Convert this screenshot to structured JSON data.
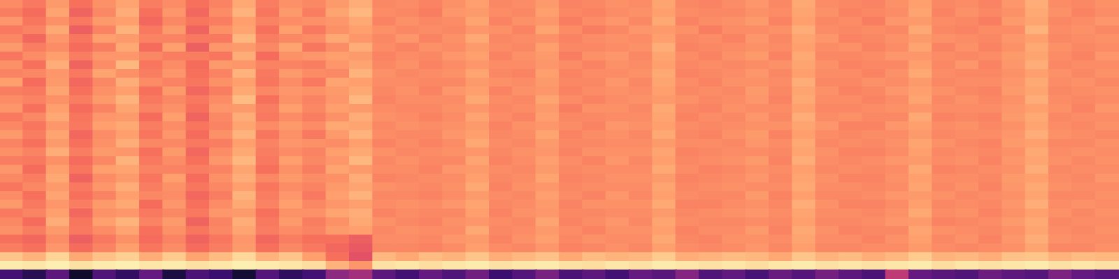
{
  "chart_data": {
    "type": "heatmap",
    "tick_labels": false,
    "zlim": [
      0,
      100
    ],
    "cells": [
      [
        76,
        72,
        79,
        70,
        77,
        81,
        73,
        76,
        70,
        74,
        82,
        73,
        77,
        75,
        79,
        83,
        75,
        76,
        74,
        77,
        80,
        75,
        76,
        79,
        74,
        75,
        77,
        76,
        81,
        75,
        74,
        76,
        78,
        75,
        82,
        76,
        75,
        74,
        77,
        80,
        75,
        76,
        74,
        78,
        83,
        76,
        75,
        77
      ],
      [
        73,
        69,
        81,
        67,
        75,
        83,
        70,
        78,
        68,
        76,
        84,
        71,
        79,
        73,
        81,
        85,
        76,
        75,
        73,
        78,
        79,
        76,
        75,
        80,
        75,
        74,
        76,
        77,
        80,
        76,
        75,
        75,
        77,
        76,
        81,
        77,
        74,
        75,
        76,
        81,
        74,
        77,
        75,
        77,
        82,
        77,
        74,
        76
      ],
      [
        78,
        71,
        77,
        72,
        79,
        80,
        68,
        75,
        71,
        73,
        80,
        74,
        76,
        77,
        78,
        82,
        74,
        77,
        75,
        76,
        81,
        74,
        77,
        78,
        73,
        76,
        78,
        75,
        82,
        74,
        76,
        77,
        79,
        74,
        80,
        75,
        76,
        73,
        78,
        79,
        76,
        75,
        73,
        79,
        81,
        75,
        76,
        78
      ],
      [
        72,
        74,
        82,
        66,
        74,
        84,
        72,
        79,
        67,
        77,
        81,
        70,
        80,
        72,
        77,
        80,
        77,
        75,
        76,
        75,
        78,
        77,
        74,
        81,
        76,
        73,
        75,
        78,
        79,
        77,
        73,
        76,
        76,
        77,
        83,
        76,
        75,
        76,
        75,
        82,
        75,
        74,
        76,
        76,
        84,
        76,
        77,
        75
      ],
      [
        75,
        68,
        78,
        71,
        80,
        79,
        74,
        74,
        72,
        72,
        85,
        73,
        75,
        76,
        82,
        78,
        75,
        78,
        74,
        77,
        82,
        75,
        76,
        77,
        74,
        76,
        77,
        76,
        80,
        75,
        76,
        74,
        78,
        75,
        81,
        78,
        74,
        75,
        77,
        79,
        77,
        76,
        75,
        78,
        80,
        75,
        76,
        77
      ],
      [
        79,
        73,
        76,
        69,
        73,
        82,
        69,
        80,
        66,
        78,
        79,
        75,
        81,
        71,
        76,
        83,
        76,
        74,
        77,
        76,
        79,
        76,
        75,
        80,
        75,
        75,
        76,
        77,
        83,
        74,
        75,
        76,
        77,
        76,
        80,
        76,
        77,
        74,
        76,
        81,
        74,
        77,
        74,
        77,
        82,
        77,
        75,
        76
      ],
      [
        71,
        76,
        80,
        73,
        78,
        78,
        75,
        73,
        73,
        71,
        83,
        69,
        77,
        78,
        80,
        79,
        74,
        76,
        75,
        78,
        80,
        74,
        77,
        79,
        73,
        77,
        78,
        75,
        81,
        76,
        74,
        77,
        79,
        74,
        82,
        75,
        75,
        76,
        78,
        78,
        76,
        75,
        76,
        79,
        81,
        76,
        74,
        78
      ],
      [
        77,
        70,
        83,
        67,
        76,
        85,
        71,
        76,
        69,
        79,
        78,
        74,
        74,
        73,
        78,
        81,
        75,
        77,
        74,
        76,
        78,
        76,
        76,
        78,
        76,
        74,
        77,
        76,
        80,
        75,
        76,
        75,
        76,
        77,
        81,
        77,
        74,
        75,
        75,
        80,
        75,
        78,
        74,
        78,
        83,
        75,
        76,
        76
      ],
      [
        74,
        75,
        78,
        72,
        81,
        77,
        73,
        78,
        70,
        74,
        84,
        72,
        79,
        76,
        75,
        84,
        77,
        75,
        76,
        77,
        81,
        75,
        74,
        80,
        74,
        76,
        76,
        77,
        82,
        74,
        75,
        76,
        78,
        75,
        80,
        76,
        76,
        74,
        77,
        82,
        76,
        75,
        75,
        77,
        80,
        77,
        75,
        77
      ],
      [
        80,
        69,
        79,
        68,
        75,
        83,
        76,
        74,
        71,
        77,
        80,
        71,
        76,
        72,
        81,
        80,
        76,
        76,
        75,
        75,
        79,
        77,
        76,
        79,
        75,
        75,
        78,
        75,
        81,
        76,
        74,
        77,
        77,
        76,
        83,
        75,
        75,
        77,
        76,
        79,
        75,
        76,
        76,
        78,
        82,
        76,
        77,
        75
      ],
      [
        73,
        72,
        81,
        70,
        77,
        80,
        70,
        79,
        68,
        73,
        82,
        75,
        78,
        77,
        79,
        82,
        75,
        77,
        74,
        78,
        80,
        74,
        77,
        78,
        74,
        76,
        77,
        76,
        80,
        75,
        76,
        75,
        79,
        75,
        81,
        77,
        74,
        75,
        78,
        80,
        77,
        75,
        74,
        79,
        81,
        75,
        76,
        77
      ],
      [
        76,
        74,
        77,
        73,
        79,
        84,
        72,
        75,
        72,
        76,
        86,
        70,
        77,
        74,
        78,
        85,
        74,
        76,
        76,
        76,
        82,
        76,
        75,
        81,
        76,
        74,
        76,
        77,
        79,
        77,
        75,
        76,
        78,
        74,
        82,
        76,
        76,
        74,
        76,
        81,
        75,
        77,
        75,
        77,
        83,
        76,
        75,
        76
      ],
      [
        78,
        70,
        80,
        69,
        74,
        81,
        74,
        77,
        70,
        78,
        79,
        73,
        80,
        75,
        80,
        79,
        76,
        75,
        75,
        77,
        78,
        75,
        76,
        79,
        73,
        77,
        77,
        75,
        82,
        75,
        74,
        77,
        76,
        76,
        80,
        75,
        75,
        76,
        77,
        78,
        76,
        76,
        76,
        78,
        80,
        77,
        74,
        78
      ],
      [
        72,
        75,
        82,
        71,
        78,
        79,
        69,
        80,
        67,
        75,
        83,
        72,
        76,
        73,
        77,
        83,
        77,
        76,
        74,
        76,
        81,
        76,
        74,
        80,
        75,
        75,
        76,
        76,
        81,
        74,
        76,
        75,
        78,
        75,
        83,
        76,
        77,
        75,
        75,
        82,
        74,
        75,
        74,
        79,
        82,
        75,
        76,
        76
      ],
      [
        75,
        71,
        78,
        72,
        80,
        82,
        73,
        76,
        71,
        74,
        81,
        76,
        79,
        76,
        82,
        81,
        75,
        77,
        76,
        77,
        79,
        74,
        77,
        78,
        76,
        74,
        78,
        77,
        80,
        76,
        75,
        76,
        77,
        77,
        81,
        78,
        74,
        74,
        78,
        80,
        76,
        77,
        75,
        77,
        81,
        76,
        75,
        77
      ],
      [
        79,
        73,
        81,
        68,
        76,
        80,
        71,
        78,
        69,
        77,
        84,
        71,
        77,
        72,
        79,
        84,
        76,
        75,
        75,
        78,
        80,
        75,
        76,
        81,
        74,
        76,
        77,
        75,
        82,
        75,
        74,
        77,
        79,
        74,
        80,
        76,
        75,
        76,
        76,
        79,
        75,
        76,
        76,
        78,
        83,
        77,
        76,
        75
      ],
      [
        74,
        70,
        79,
        70,
        77,
        83,
        75,
        75,
        72,
        73,
        80,
        74,
        78,
        77,
        76,
        80,
        74,
        76,
        74,
        76,
        82,
        76,
        75,
        79,
        75,
        75,
        76,
        76,
        79,
        76,
        76,
        75,
        78,
        76,
        82,
        75,
        76,
        75,
        77,
        81,
        77,
        75,
        74,
        79,
        80,
        75,
        75,
        77
      ],
      [
        77,
        74,
        83,
        73,
        79,
        78,
        70,
        79,
        68,
        76,
        82,
        73,
        76,
        74,
        80,
        82,
        77,
        75,
        76,
        77,
        78,
        75,
        77,
        78,
        74,
        77,
        77,
        77,
        81,
        74,
        75,
        76,
        76,
        75,
        81,
        77,
        74,
        74,
        76,
        80,
        75,
        76,
        75,
        77,
        82,
        76,
        77,
        76
      ],
      [
        73,
        72,
        77,
        69,
        75,
        84,
        72,
        76,
        70,
        78,
        85,
        72,
        80,
        75,
        78,
        85,
        75,
        77,
        75,
        75,
        81,
        74,
        76,
        80,
        76,
        74,
        78,
        75,
        80,
        75,
        76,
        77,
        79,
        74,
        83,
        76,
        75,
        76,
        78,
        79,
        76,
        77,
        74,
        78,
        81,
        77,
        75,
        77
      ],
      [
        78,
        69,
        80,
        71,
        80,
        81,
        74,
        74,
        73,
        74,
        81,
        70,
        77,
        73,
        81,
        79,
        76,
        76,
        74,
        78,
        79,
        76,
        75,
        79,
        75,
        76,
        76,
        76,
        82,
        76,
        74,
        75,
        77,
        76,
        80,
        75,
        76,
        75,
        76,
        82,
        74,
        75,
        76,
        77,
        83,
        75,
        76,
        76
      ],
      [
        75,
        73,
        82,
        67,
        76,
        79,
        71,
        80,
        69,
        77,
        83,
        75,
        79,
        76,
        77,
        83,
        74,
        75,
        76,
        76,
        80,
        75,
        76,
        81,
        74,
        75,
        77,
        77,
        79,
        74,
        75,
        76,
        78,
        75,
        81,
        77,
        74,
        74,
        77,
        80,
        76,
        76,
        75,
        79,
        80,
        76,
        75,
        78
      ],
      [
        71,
        75,
        79,
        72,
        78,
        83,
        73,
        77,
        71,
        75,
        80,
        71,
        76,
        74,
        79,
        81,
        77,
        76,
        75,
        77,
        82,
        74,
        77,
        78,
        75,
        76,
        76,
        76,
        81,
        75,
        76,
        77,
        76,
        76,
        82,
        76,
        76,
        75,
        76,
        81,
        75,
        77,
        74,
        78,
        82,
        77,
        76,
        76
      ],
      [
        76,
        70,
        81,
        70,
        74,
        80,
        75,
        76,
        68,
        73,
        84,
        73,
        78,
        72,
        80,
        84,
        75,
        75,
        74,
        76,
        79,
        76,
        75,
        80,
        76,
        74,
        78,
        75,
        80,
        76,
        75,
        75,
        79,
        74,
        80,
        75,
        75,
        76,
        78,
        79,
        77,
        75,
        76,
        77,
        81,
        75,
        75,
        77
      ],
      [
        79,
        72,
        78,
        73,
        79,
        82,
        69,
        78,
        70,
        76,
        82,
        74,
        80,
        75,
        78,
        80,
        76,
        77,
        76,
        78,
        81,
        75,
        76,
        79,
        74,
        77,
        77,
        77,
        82,
        74,
        74,
        76,
        77,
        75,
        83,
        77,
        74,
        74,
        76,
        80,
        75,
        76,
        75,
        78,
        83,
        76,
        77,
        76
      ],
      [
        72,
        74,
        80,
        68,
        77,
        78,
        72,
        75,
        72,
        78,
        79,
        70,
        77,
        77,
        81,
        83,
        74,
        76,
        75,
        75,
        80,
        74,
        77,
        78,
        75,
        75,
        76,
        76,
        79,
        75,
        76,
        77,
        78,
        76,
        81,
        76,
        76,
        75,
        77,
        82,
        76,
        77,
        74,
        77,
        80,
        77,
        75,
        77
      ],
      [
        75,
        69,
        83,
        71,
        80,
        84,
        74,
        79,
        67,
        74,
        83,
        72,
        79,
        73,
        77,
        82,
        77,
        75,
        74,
        77,
        78,
        76,
        75,
        81,
        74,
        76,
        78,
        75,
        81,
        76,
        75,
        75,
        76,
        75,
        80,
        75,
        75,
        76,
        78,
        79,
        74,
        75,
        76,
        79,
        82,
        75,
        76,
        76
      ],
      [
        77,
        73,
        79,
        72,
        76,
        81,
        70,
        77,
        71,
        75,
        81,
        73,
        76,
        74,
        79,
        80,
        75,
        77,
        76,
        76,
        82,
        75,
        76,
        79,
        76,
        74,
        77,
        77,
        80,
        74,
        76,
        76,
        79,
        74,
        82,
        77,
        74,
        75,
        75,
        81,
        77,
        76,
        75,
        77,
        81,
        76,
        75,
        77
      ],
      [
        70,
        68,
        76,
        66,
        72,
        77,
        69,
        74,
        67,
        71,
        78,
        68,
        73,
        70,
        70,
        66,
        76,
        76,
        75,
        78,
        79,
        74,
        77,
        80,
        75,
        77,
        76,
        76,
        82,
        75,
        74,
        77,
        77,
        76,
        81,
        76,
        76,
        74,
        77,
        80,
        75,
        77,
        74,
        78,
        83,
        77,
        76,
        76
      ],
      [
        73,
        70,
        78,
        69,
        74,
        80,
        71,
        76,
        69,
        73,
        79,
        70,
        75,
        72,
        68,
        64,
        75,
        75,
        74,
        76,
        80,
        76,
        75,
        78,
        74,
        75,
        77,
        75,
        80,
        76,
        75,
        76,
        78,
        75,
        80,
        75,
        75,
        76,
        76,
        79,
        76,
        75,
        76,
        77,
        81,
        75,
        75,
        77
      ],
      [
        88,
        84,
        91,
        82,
        87,
        90,
        83,
        89,
        81,
        86,
        92,
        84,
        88,
        80,
        70,
        62,
        85,
        82,
        86,
        84,
        88,
        83,
        85,
        87,
        82,
        86,
        84,
        85,
        89,
        83,
        84,
        86,
        85,
        82,
        88,
        84,
        86,
        83,
        85,
        89,
        84,
        85,
        83,
        87,
        88,
        84,
        86,
        85
      ],
      [
        96,
        95,
        97,
        94,
        96,
        97,
        95,
        96,
        94,
        95,
        97,
        96,
        95,
        93,
        84,
        78,
        94,
        95,
        93,
        95,
        96,
        94,
        95,
        96,
        94,
        93,
        95,
        94,
        96,
        95,
        94,
        95,
        93,
        95,
        96,
        94,
        95,
        94,
        95,
        96,
        93,
        95,
        94,
        95,
        96,
        94,
        95,
        94
      ],
      [
        22,
        15,
        28,
        8,
        25,
        18,
        30,
        12,
        24,
        20,
        10,
        26,
        17,
        22,
        40,
        45,
        28,
        22,
        30,
        25,
        33,
        20,
        26,
        35,
        24,
        28,
        22,
        30,
        27,
        38,
        25,
        29,
        23,
        31,
        26,
        34,
        28,
        24,
        52,
        30,
        27,
        25,
        32,
        28,
        26,
        36,
        30,
        27
      ]
    ]
  }
}
